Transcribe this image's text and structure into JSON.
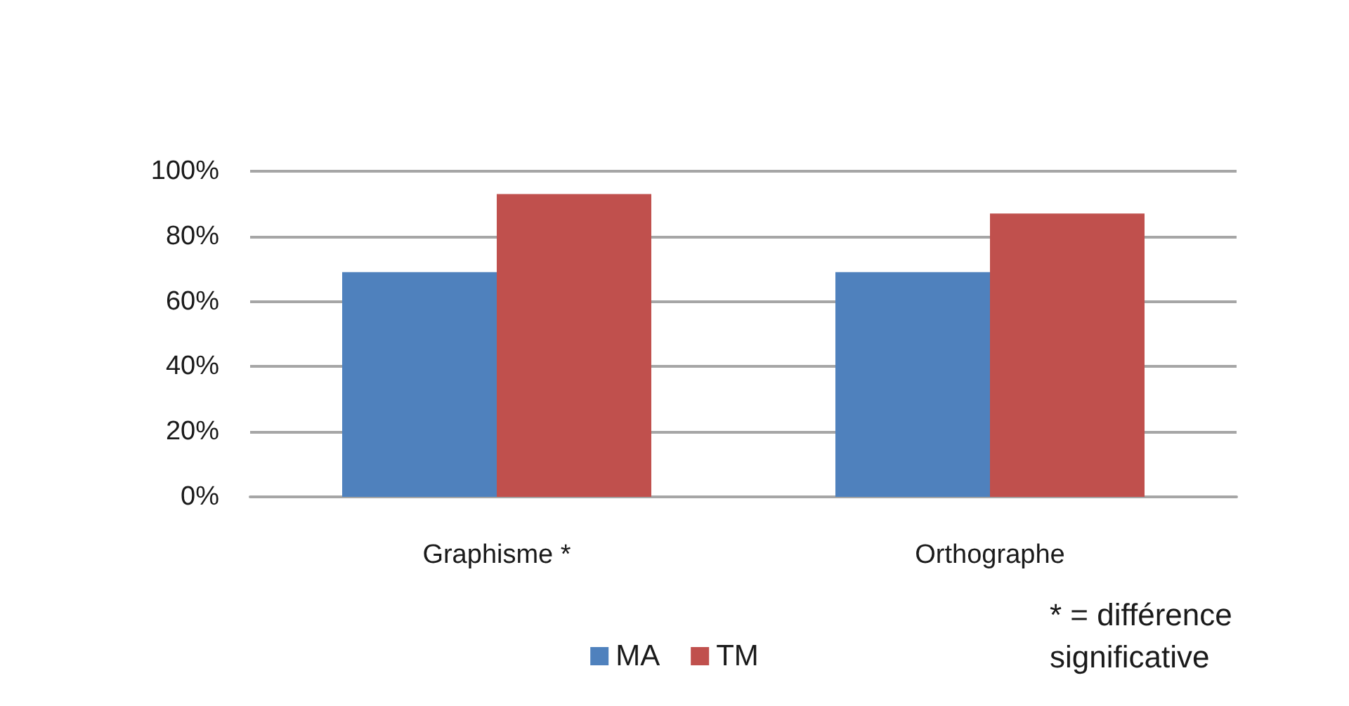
{
  "chart_data": {
    "type": "bar",
    "categories": [
      "Graphisme *",
      "Orthographe"
    ],
    "series": [
      {
        "name": "MA",
        "color": "#4f81bd",
        "values": [
          69,
          69
        ]
      },
      {
        "name": "TM",
        "color": "#c0504d",
        "values": [
          93,
          87
        ]
      }
    ],
    "ylim": [
      0,
      100
    ],
    "yticks": [
      {
        "value": 0,
        "label": "0%"
      },
      {
        "value": 20,
        "label": "20%"
      },
      {
        "value": 40,
        "label": "40%"
      },
      {
        "value": 60,
        "label": "60%"
      },
      {
        "value": 80,
        "label": "80%"
      },
      {
        "value": 100,
        "label": "100%"
      }
    ],
    "grid": true,
    "legend": "bottom",
    "annotations": [
      "* = différence significative"
    ]
  }
}
